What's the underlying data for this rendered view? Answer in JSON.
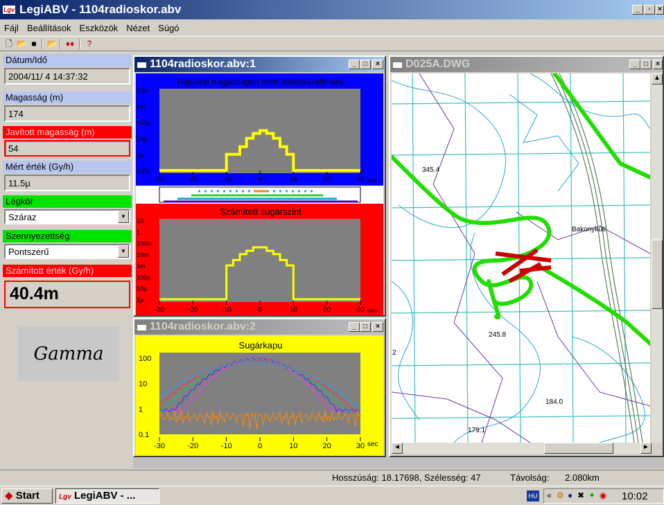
{
  "app": {
    "title": "LegiABV - 1104radioskor.abv",
    "icon_text": "Lgv"
  },
  "menu": [
    "Fájl",
    "Beállítások",
    "Eszközök",
    "Nézet",
    "Súgó"
  ],
  "toolbar_icons": [
    "new-file-icon",
    "open-file-icon",
    "save-icon",
    "open-folder-icon",
    "split-icon",
    "help-icon"
  ],
  "left_panel": {
    "datetime_label": "Dátum/Idő",
    "datetime_value": "2004/11/ 4 14:37:32",
    "altitude_label": "Magasság (m)",
    "altitude_value": "174",
    "corr_altitude_label": "Javított magasság (m)",
    "corr_altitude_value": "54",
    "measured_label": "Mért érték (Gy/h)",
    "measured_value": "11.5µ",
    "atmosphere_label": "Légkör",
    "atmosphere_value": "Száraz",
    "contamination_label": "Szennyezettség",
    "contamination_value": "Pontszerű",
    "computed_label": "Számított érték (Gy/h)",
    "computed_value": "40.4m",
    "logo_text": "Gamma"
  },
  "window1": {
    "title": "1104radioskor.abv:1",
    "plot_top_title": "Repülési magasságon mért dózisteljesítmény",
    "plot_top_yticks": [
      "10m",
      "1m",
      "100µ",
      "10µ",
      "1µ",
      "100n"
    ],
    "plot_bottom_title": "Számított sugárszint",
    "plot_bottom_yticks": [
      "10",
      "1",
      "100m",
      "10m",
      "1m",
      "100µ",
      "10µ",
      "1µ"
    ],
    "xticks": [
      "-30",
      "-20",
      "-10",
      "0",
      "10",
      "20",
      "30"
    ],
    "xunit": "sec"
  },
  "window2": {
    "title": "1104radioskor.abv:2",
    "plot_title": "Sugárkapu",
    "yticks": [
      "100",
      "10",
      "1",
      "0.1"
    ],
    "xticks": [
      "-30",
      "-20",
      "-10",
      "0",
      "10",
      "20",
      "30"
    ],
    "xunit": "sec"
  },
  "window3": {
    "title": "D025A.DWG",
    "map_labels": [
      "345.4",
      "Bakonykúti",
      "245.8",
      "184.0",
      "179.1",
      "2"
    ]
  },
  "statusbar": {
    "coords": "Hosszúság: 18.17698, Szélesség: 47",
    "distance_label": "Távolság:",
    "distance_value": "2.080km"
  },
  "taskbar": {
    "start": "Start",
    "task": "LegiABV - ...",
    "lang": "HU",
    "clock": "10:02"
  },
  "chart_data": [
    {
      "type": "line",
      "title": "Repülési magasságon mért dózisteljesítmény",
      "xlabel": "sec",
      "x": [
        -30,
        -10,
        -8,
        -6,
        -4,
        -2,
        0,
        2,
        4,
        6,
        8,
        10,
        30
      ],
      "series": [
        {
          "values": [
            "100n",
            "1µ",
            "1µ",
            "3µ",
            "10µ",
            "20µ",
            "30µ",
            "20µ",
            "10µ",
            "3µ",
            "1µ",
            "100n",
            "100n"
          ]
        }
      ],
      "xlim": [
        -30,
        30
      ]
    },
    {
      "type": "line",
      "title": "Számított sugárszint",
      "xlabel": "sec",
      "x": [
        -30,
        -10,
        -8,
        -6,
        -4,
        -2,
        0,
        2,
        4,
        6,
        8,
        10,
        30
      ],
      "series": [
        {
          "values": [
            "1µ",
            "1m",
            "3m",
            "10m",
            "20m",
            "40m",
            "40m",
            "20m",
            "10m",
            "3m",
            "1m",
            "1µ",
            "1µ"
          ]
        }
      ],
      "xlim": [
        -30,
        30
      ]
    },
    {
      "type": "line",
      "title": "Sugárkapu",
      "xlabel": "sec",
      "yscale": "log",
      "ylim": [
        0.1,
        100
      ],
      "xlim": [
        -30,
        30
      ]
    }
  ],
  "colors": {
    "blue_bg": "#0000ff",
    "red_bg": "#ff0000",
    "yellow_bg": "#ffff00",
    "plot_gray": "#808080",
    "curve_yellow": "#ffff00",
    "track_green": "#22dd00",
    "track_red": "#cc0000"
  }
}
